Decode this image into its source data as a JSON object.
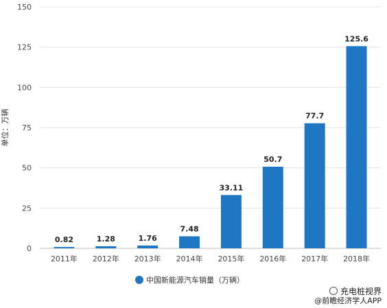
{
  "chart_data": {
    "type": "bar",
    "categories": [
      "2011年",
      "2012年",
      "2013年",
      "2014年",
      "2015年",
      "2016年",
      "2017年",
      "2018年"
    ],
    "series": [
      {
        "name": "中国新能源汽车销量（万辆）",
        "values": [
          0.82,
          1.28,
          1.76,
          7.48,
          33.11,
          50.7,
          77.7,
          125.6
        ],
        "labels": [
          "0.82",
          "1.28",
          "1.76",
          "7.48",
          "33.11",
          "50.7",
          "77.7",
          "125.6"
        ]
      }
    ],
    "title": "",
    "xlabel": "",
    "ylabel": "单位：万辆",
    "ylim": [
      0,
      150
    ],
    "yticks": [
      0,
      25,
      50,
      75,
      100,
      125,
      150
    ],
    "grid": true,
    "legend": "bottom-center",
    "bar_color": "#1f77c4"
  },
  "watermark": {
    "channel": "充电桩视界",
    "source": "@前瞻经济学人APP"
  }
}
